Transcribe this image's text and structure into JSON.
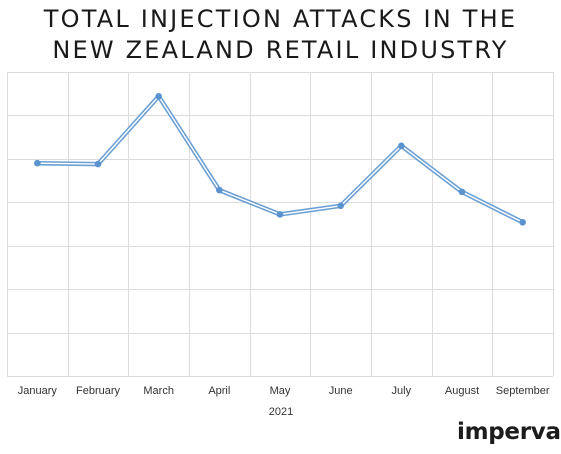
{
  "title_lines": [
    "TOTAL INJECTION ATTACKS IN THE",
    "NEW ZEALAND RETAIL INDUSTRY"
  ],
  "logo_text": "imperva",
  "colors": {
    "line": "#6a9fd4",
    "line_inner": "#ffffff",
    "marker": "#5b93cf",
    "grid": "#dcdcdc",
    "axis_text": "#333333"
  },
  "chart_data": {
    "type": "line",
    "title": "TOTAL INJECTION ATTACKS IN THE NEW ZEALAND RETAIL INDUSTRY",
    "categories": [
      "January",
      "February",
      "March",
      "April",
      "May",
      "June",
      "July",
      "August",
      "September"
    ],
    "xlabel": "2021",
    "ylabel": "",
    "series": [
      {
        "values": [
          4.9,
          4.88,
          6.44,
          4.28,
          3.72,
          3.92,
          5.3,
          4.24,
          3.54
        ]
      }
    ],
    "ylim": [
      0,
      7
    ],
    "y_tick_labels_shown": false,
    "grid": true,
    "legend": "none"
  }
}
